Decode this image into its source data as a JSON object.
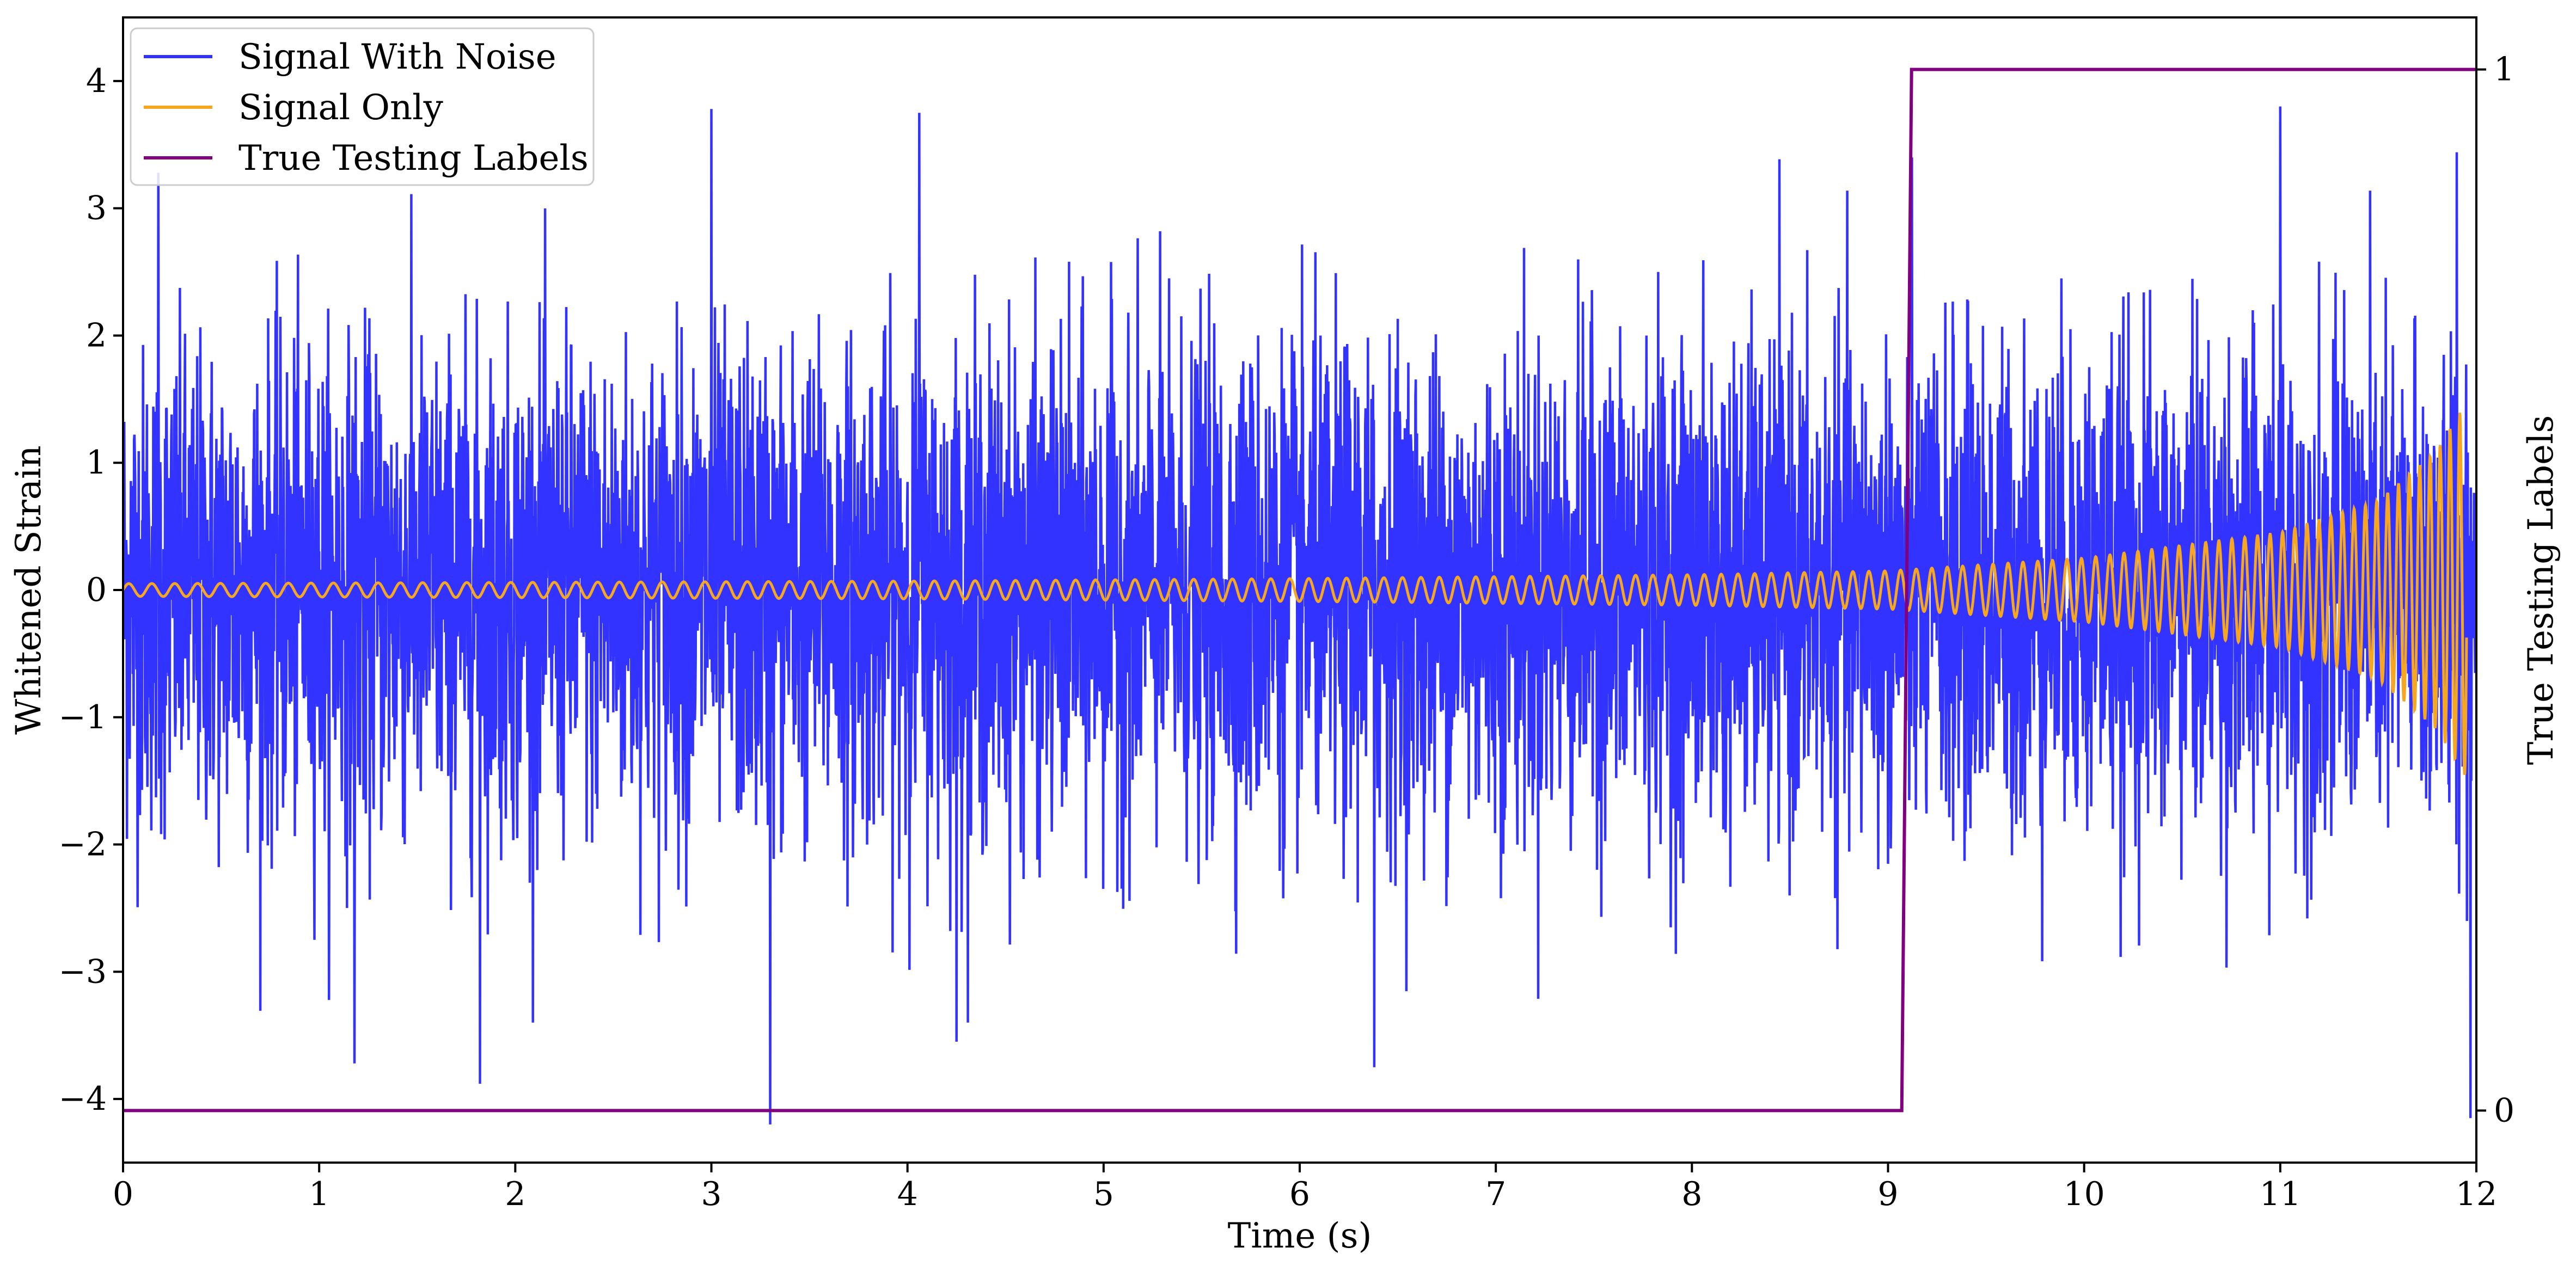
{
  "chart_data": {
    "type": "line",
    "xlabel": "Time (s)",
    "ylabel": "Whitened Strain",
    "y2label": "True Testing Labels",
    "xlim": [
      0,
      12
    ],
    "ylim": [
      -4.5,
      4.5
    ],
    "y2lim": [
      -0.05,
      1.05
    ],
    "xticks": [
      "0",
      "1",
      "2",
      "3",
      "4",
      "5",
      "6",
      "7",
      "8",
      "9",
      "10",
      "11",
      "12"
    ],
    "yticks": [
      "−4",
      "−3",
      "−2",
      "−1",
      "0",
      "1",
      "2",
      "3",
      "4"
    ],
    "y2ticks": [
      "0",
      "1"
    ],
    "legend_position": "top-left",
    "grid": false,
    "series": [
      {
        "name": "Signal With Noise",
        "color": "#3333ff",
        "axis": "left",
        "description_points": {
          "typical_range": [
            -1.5,
            1.5
          ],
          "peaks": [
            [
              0.18,
              3.28
            ],
            [
              3.0,
              3.78
            ],
            [
              4.06,
              3.75
            ],
            [
              11.0,
              3.8
            ],
            [
              11.9,
              3.44
            ]
          ],
          "troughs": [
            [
              1.18,
              -3.72
            ],
            [
              1.82,
              -3.88
            ],
            [
              3.3,
              -4.2
            ],
            [
              4.25,
              -3.55
            ],
            [
              6.38,
              -3.75
            ],
            [
              11.97,
              -4.15
            ]
          ]
        }
      },
      {
        "name": "Signal Only",
        "color": "#f5a623",
        "axis": "left",
        "points": [
          [
            0,
            0.05
          ],
          [
            2,
            0.06
          ],
          [
            4,
            0.07
          ],
          [
            6,
            0.09
          ],
          [
            8,
            0.12
          ],
          [
            9,
            0.15
          ],
          [
            10,
            0.25
          ],
          [
            11,
            0.45
          ],
          [
            11.5,
            0.7
          ],
          [
            11.8,
            1.1
          ],
          [
            11.95,
            1.48
          ]
        ]
      },
      {
        "name": "True Testing Labels",
        "color": "#800080",
        "axis": "right",
        "points": [
          [
            0,
            0
          ],
          [
            9.07,
            0
          ],
          [
            9.12,
            1
          ],
          [
            12,
            1
          ]
        ]
      }
    ]
  }
}
